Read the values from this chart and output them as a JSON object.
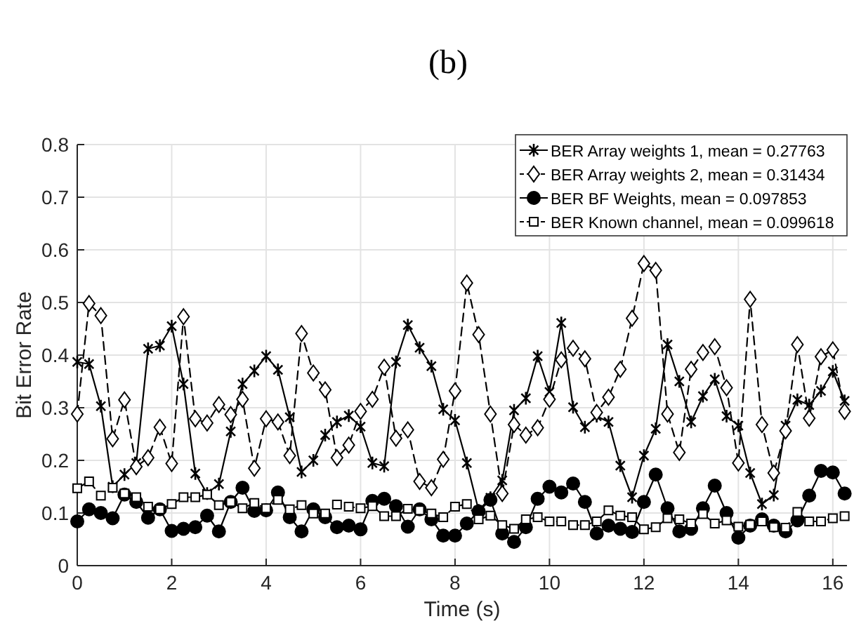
{
  "chart_data": {
    "type": "line",
    "title": "(b)",
    "xlabel": "Time (s)",
    "ylabel": "Bit Error Rate",
    "x": [
      0,
      0.25,
      0.5,
      0.75,
      1,
      1.25,
      1.5,
      1.75,
      2,
      2.25,
      2.5,
      2.75,
      3,
      3.25,
      3.5,
      3.75,
      4,
      4.25,
      4.5,
      4.75,
      5,
      5.25,
      5.5,
      5.75,
      6,
      6.25,
      6.5,
      6.75,
      7,
      7.25,
      7.5,
      7.75,
      8,
      8.25,
      8.5,
      8.75,
      9,
      9.25,
      9.5,
      9.75,
      10,
      10.25,
      10.5,
      10.75,
      11,
      11.25,
      11.5,
      11.75,
      12,
      12.25,
      12.5,
      12.75,
      13,
      13.25,
      13.5,
      13.75,
      14,
      14.25,
      14.5,
      14.75,
      15,
      15.25,
      15.5,
      15.75,
      16,
      16.25
    ],
    "xlim": [
      0,
      16.3
    ],
    "xticks": [
      0,
      2,
      4,
      6,
      8,
      10,
      12,
      14,
      16
    ],
    "ylim": [
      0,
      0.8
    ],
    "yticks": [
      0,
      0.1,
      0.2,
      0.3,
      0.4,
      0.5,
      0.6,
      0.7,
      0.8
    ],
    "grid": true,
    "legend": "top right",
    "series": [
      {
        "name": "BER Array weights 1, mean = 0.27763",
        "color": "#000000",
        "marker": "cross",
        "line_style": "solid",
        "values": [
          0.387,
          0.383,
          0.303,
          0.15,
          0.173,
          0.195,
          0.412,
          0.418,
          0.455,
          0.345,
          0.175,
          0.137,
          0.155,
          0.255,
          0.345,
          0.37,
          0.398,
          0.372,
          0.282,
          0.178,
          0.2,
          0.248,
          0.273,
          0.285,
          0.264,
          0.195,
          0.189,
          0.387,
          0.457,
          0.414,
          0.379,
          0.297,
          0.276,
          0.195,
          0.105,
          0.129,
          0.162,
          0.295,
          0.318,
          0.398,
          0.33,
          0.461,
          0.301,
          0.263,
          0.284,
          0.273,
          0.19,
          0.13,
          0.209,
          0.26,
          0.42,
          0.35,
          0.273,
          0.322,
          0.354,
          0.284,
          0.266,
          0.176,
          0.117,
          0.134,
          0.266,
          0.315,
          0.305,
          0.332,
          0.369,
          0.313
        ]
      },
      {
        "name": "BER Array weights 2, mean = 0.31434",
        "color": "#000000",
        "marker": "diamond",
        "line_style": "dashed",
        "values": [
          0.288,
          0.498,
          0.475,
          0.241,
          0.315,
          0.188,
          0.205,
          0.263,
          0.194,
          0.473,
          0.279,
          0.271,
          0.306,
          0.287,
          0.316,
          0.185,
          0.279,
          0.273,
          0.209,
          0.441,
          0.366,
          0.334,
          0.205,
          0.229,
          0.293,
          0.316,
          0.377,
          0.242,
          0.258,
          0.16,
          0.148,
          0.202,
          0.332,
          0.537,
          0.439,
          0.288,
          0.137,
          0.268,
          0.248,
          0.262,
          0.316,
          0.391,
          0.413,
          0.393,
          0.291,
          0.32,
          0.373,
          0.47,
          0.574,
          0.561,
          0.288,
          0.215,
          0.373,
          0.405,
          0.416,
          0.338,
          0.195,
          0.506,
          0.268,
          0.176,
          0.256,
          0.42,
          0.28,
          0.397,
          0.41,
          0.293
        ]
      },
      {
        "name": "BER BF Weights, mean = 0.097853",
        "color": "#000000",
        "marker": "circle",
        "line_style": "solid",
        "values": [
          0.084,
          0.107,
          0.1,
          0.09,
          0.135,
          0.121,
          0.091,
          0.107,
          0.066,
          0.07,
          0.073,
          0.095,
          0.065,
          0.121,
          0.148,
          0.104,
          0.105,
          0.139,
          0.092,
          0.065,
          0.107,
          0.092,
          0.073,
          0.076,
          0.069,
          0.123,
          0.127,
          0.113,
          0.074,
          0.107,
          0.088,
          0.057,
          0.057,
          0.08,
          0.103,
          0.125,
          0.061,
          0.045,
          0.073,
          0.127,
          0.15,
          0.139,
          0.156,
          0.121,
          0.061,
          0.076,
          0.07,
          0.064,
          0.121,
          0.173,
          0.109,
          0.065,
          0.07,
          0.109,
          0.152,
          0.1,
          0.053,
          0.076,
          0.088,
          0.076,
          0.065,
          0.086,
          0.133,
          0.18,
          0.177,
          0.137
        ]
      },
      {
        "name": "BER Known channel, mean = 0.099618",
        "color": "#000000",
        "marker": "square",
        "line_style": "dashed",
        "values": [
          0.147,
          0.16,
          0.133,
          0.148,
          0.137,
          0.13,
          0.112,
          0.107,
          0.117,
          0.13,
          0.13,
          0.135,
          0.115,
          0.121,
          0.109,
          0.119,
          0.109,
          0.125,
          0.107,
          0.115,
          0.099,
          0.099,
          0.116,
          0.112,
          0.109,
          0.113,
          0.094,
          0.094,
          0.108,
          0.105,
          0.099,
          0.092,
          0.112,
          0.117,
          0.088,
          0.095,
          0.077,
          0.07,
          0.088,
          0.092,
          0.084,
          0.084,
          0.077,
          0.077,
          0.084,
          0.105,
          0.095,
          0.092,
          0.069,
          0.073,
          0.09,
          0.088,
          0.08,
          0.098,
          0.08,
          0.086,
          0.074,
          0.078,
          0.084,
          0.073,
          0.072,
          0.102,
          0.084,
          0.084,
          0.09,
          0.094
        ]
      }
    ]
  }
}
